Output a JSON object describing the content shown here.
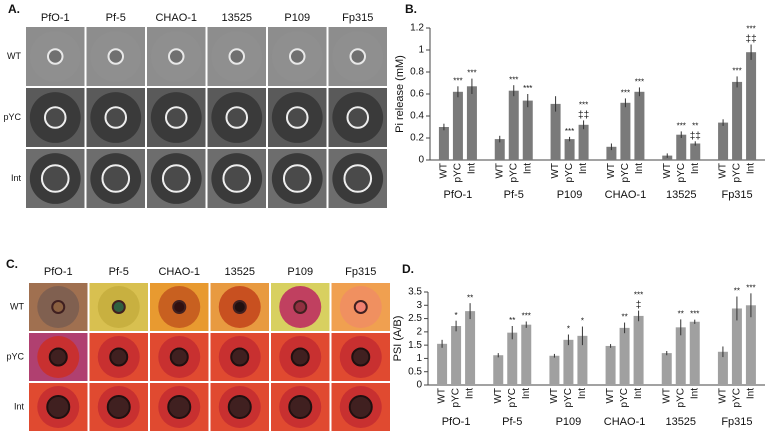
{
  "panels": {
    "A": {
      "label": "A.",
      "columns": [
        "PfO-1",
        "Pf-5",
        "CHAO-1",
        "13525",
        "P109",
        "Fp315"
      ],
      "rows": [
        "WT",
        "pYC",
        "Int"
      ]
    },
    "C": {
      "label": "C.",
      "columns": [
        "PfO-1",
        "Pf-5",
        "CHAO-1",
        "13525",
        "P109",
        "Fp315"
      ],
      "rows": [
        "WT",
        "pYC",
        "Int"
      ]
    }
  },
  "chart_data": [
    {
      "type": "bar",
      "label": "B.",
      "y_label": "Pi release (mM)",
      "categories": [
        "PfO-1",
        "Pf-5",
        "P109",
        "CHAO-1",
        "13525",
        "Fp315"
      ],
      "series": [
        {
          "name": "WT",
          "color": "#7a7a7a",
          "values": [
            0.3,
            0.19,
            0.51,
            0.12,
            0.04,
            0.34
          ],
          "errors": [
            0.03,
            0.03,
            0.07,
            0.03,
            0.02,
            0.03
          ]
        },
        {
          "name": "pYC",
          "color": "#7a7a7a",
          "values": [
            0.62,
            0.63,
            0.19,
            0.52,
            0.23,
            0.71
          ],
          "errors": [
            0.05,
            0.05,
            0.02,
            0.04,
            0.03,
            0.05
          ],
          "annotations": [
            "***",
            "***",
            "***",
            "***",
            "***",
            "***"
          ]
        },
        {
          "name": "Int",
          "color": "#7a7a7a",
          "values": [
            0.67,
            0.54,
            0.32,
            0.62,
            0.15,
            0.98
          ],
          "errors": [
            0.07,
            0.06,
            0.04,
            0.04,
            0.02,
            0.07
          ],
          "annotations": [
            "***",
            "***",
            "***",
            "***",
            "**",
            "***"
          ],
          "annotations_2": [
            null,
            null,
            "‡‡",
            null,
            "‡‡",
            "‡‡"
          ]
        }
      ],
      "ylim": [
        0,
        1.2
      ],
      "yticks": [
        0,
        0.2,
        0.4,
        0.6,
        0.8,
        1,
        1.2
      ]
    },
    {
      "type": "bar",
      "label": "D.",
      "y_label": "PSI (A/B)",
      "categories": [
        "PfO-1",
        "Pf-5",
        "P109",
        "CHAO-1",
        "13525",
        "Fp315"
      ],
      "series": [
        {
          "name": "WT",
          "color": "#a0a0a0",
          "values": [
            1.55,
            1.12,
            1.1,
            1.47,
            1.2,
            1.25
          ],
          "errors": [
            0.15,
            0.08,
            0.07,
            0.07,
            0.08,
            0.2
          ]
        },
        {
          "name": "pYC",
          "color": "#a0a0a0",
          "values": [
            2.22,
            1.97,
            1.7,
            2.15,
            2.17,
            2.88
          ],
          "errors": [
            0.2,
            0.25,
            0.2,
            0.2,
            0.3,
            0.45
          ],
          "annotations": [
            "*",
            "**",
            "*",
            "**",
            "**",
            "**"
          ]
        },
        {
          "name": "Int",
          "color": "#a0a0a0",
          "values": [
            2.78,
            2.27,
            1.85,
            2.6,
            2.38,
            3.0
          ],
          "errors": [
            0.3,
            0.12,
            0.35,
            0.2,
            0.08,
            0.45
          ],
          "annotations": [
            "**",
            "***",
            "*",
            "***",
            "***",
            "***"
          ],
          "annotations_2": [
            null,
            null,
            null,
            "‡",
            null,
            null
          ]
        }
      ],
      "ylim": [
        0,
        3.5
      ],
      "yticks": [
        0,
        0.5,
        1,
        1.5,
        2,
        2.5,
        3,
        3.5
      ]
    }
  ]
}
